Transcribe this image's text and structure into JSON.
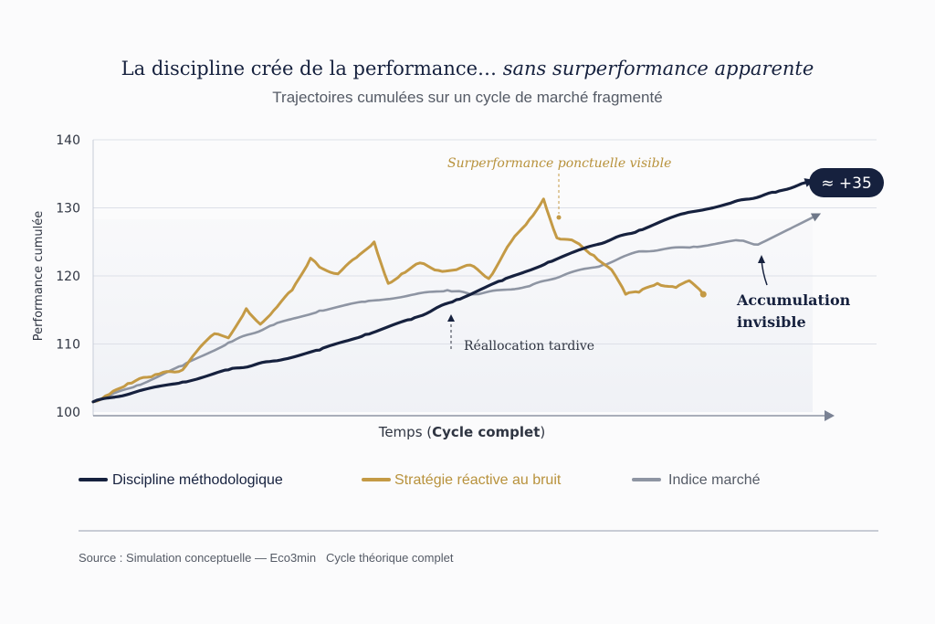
{
  "chart_data": {
    "type": "line",
    "title": "La discipline crée de la performance…",
    "title_italic": "sans surperformance apparente",
    "subtitle": "Trajectoires cumulées sur un cycle de marché fragmenté",
    "ylabel": "Performance cumulée",
    "xlabel_prefix": "Temps (",
    "xlabel_bold": "Cycle complet",
    "xlabel_suffix": ")",
    "ylim": [
      100,
      140
    ],
    "xlim": [
      0,
      100
    ],
    "yticks": [
      "100",
      "110",
      "120",
      "130",
      "140"
    ],
    "grid": true,
    "legend_position": "bottom",
    "series": [
      {
        "name": "Discipline méthodologique",
        "color": "#16213e",
        "x": [
          0,
          5.9,
          12.1,
          18.3,
          24.4,
          30.6,
          36.8,
          43,
          49.1,
          55.3,
          61.5,
          67.7,
          73.8,
          80,
          86.2,
          92.3,
          96.3
        ],
        "y": [
          101.5,
          103,
          104.4,
          106.2,
          107.5,
          109.1,
          111.4,
          113.6,
          116.5,
          119.3,
          122,
          124.5,
          126.7,
          129.2,
          130.7,
          132.3,
          133.7
        ]
      },
      {
        "name": "Stratégie réactive au bruit",
        "color": "#c49a45",
        "x": [
          0,
          2.2,
          4.7,
          8.4,
          12.1,
          14,
          16.4,
          18.3,
          20.7,
          22.6,
          24.4,
          26.9,
          29.4,
          30.6,
          33.1,
          35.6,
          38,
          39.9,
          41.7,
          44.2,
          46.7,
          49.1,
          51,
          53.5,
          56.5,
          59,
          60.9,
          62.7,
          65.2,
          67.7,
          70.1,
          72,
          73.8,
          76.3,
          78.8,
          80.6,
          82.5
        ],
        "y": [
          101.5,
          102.6,
          104.2,
          105.5,
          106.2,
          108.9,
          111.5,
          110.9,
          115.2,
          112.9,
          114.9,
          117.9,
          122.6,
          121.3,
          120.3,
          122.7,
          125,
          118.9,
          120.3,
          121.9,
          120.8,
          120.9,
          121.6,
          119.6,
          125,
          128.3,
          131.3,
          125.6,
          125,
          123,
          120.9,
          117.3,
          117.6,
          118.9,
          118.3,
          119.3,
          117.3
        ]
      },
      {
        "name": "Indice marché",
        "color": "#8e95a3",
        "x": [
          0,
          5.9,
          12.1,
          18.3,
          24.4,
          30.6,
          36.8,
          43,
          47.9,
          51.6,
          59,
          64,
          68.9,
          73.8,
          81.2,
          87.4,
          89.9,
          97.3
        ],
        "y": [
          101.5,
          103.9,
          106.8,
          110.2,
          112.8,
          114.9,
          116.2,
          117.2,
          117.9,
          117.3,
          118.5,
          120.3,
          121.6,
          123.6,
          124.3,
          125.2,
          124.6,
          128.6
        ]
      }
    ],
    "annotations": {
      "peak": "Surperformance ponctuelle visible",
      "realloc": "Réallocation tardive",
      "accum_line1": "Accumulation",
      "accum_line2": "invisible",
      "badge": "≈ +35"
    },
    "source": "Source : Simulation conceptuelle — Eco3min   Cycle théorique complet"
  }
}
